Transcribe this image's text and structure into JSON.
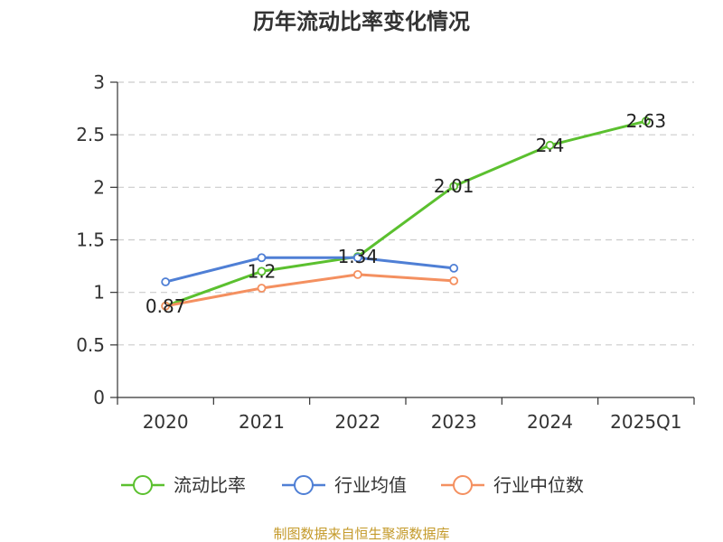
{
  "chart_data": {
    "type": "line",
    "title": "历年流动比率变化情况",
    "categories": [
      "2020",
      "2021",
      "2022",
      "2023",
      "2024",
      "2025Q1"
    ],
    "ylim": [
      0,
      3
    ],
    "yticks": [
      0,
      0.5,
      1,
      1.5,
      2,
      2.5,
      3
    ],
    "grid": true,
    "legend_position": "bottom",
    "series": [
      {
        "name": "流动比率",
        "color": "#5bc02f",
        "values": [
          0.87,
          1.2,
          1.34,
          2.01,
          2.4,
          2.63
        ],
        "show_labels": true
      },
      {
        "name": "行业均值",
        "color": "#4f7fd5",
        "values": [
          1.1,
          1.33,
          1.33,
          1.23,
          null,
          null
        ],
        "show_labels": false
      },
      {
        "name": "行业中位数",
        "color": "#f49060",
        "values": [
          0.87,
          1.04,
          1.17,
          1.11,
          null,
          null
        ],
        "show_labels": false
      }
    ],
    "source": "制图数据来自恒生聚源数据库",
    "source_color": "#c49a2a"
  }
}
